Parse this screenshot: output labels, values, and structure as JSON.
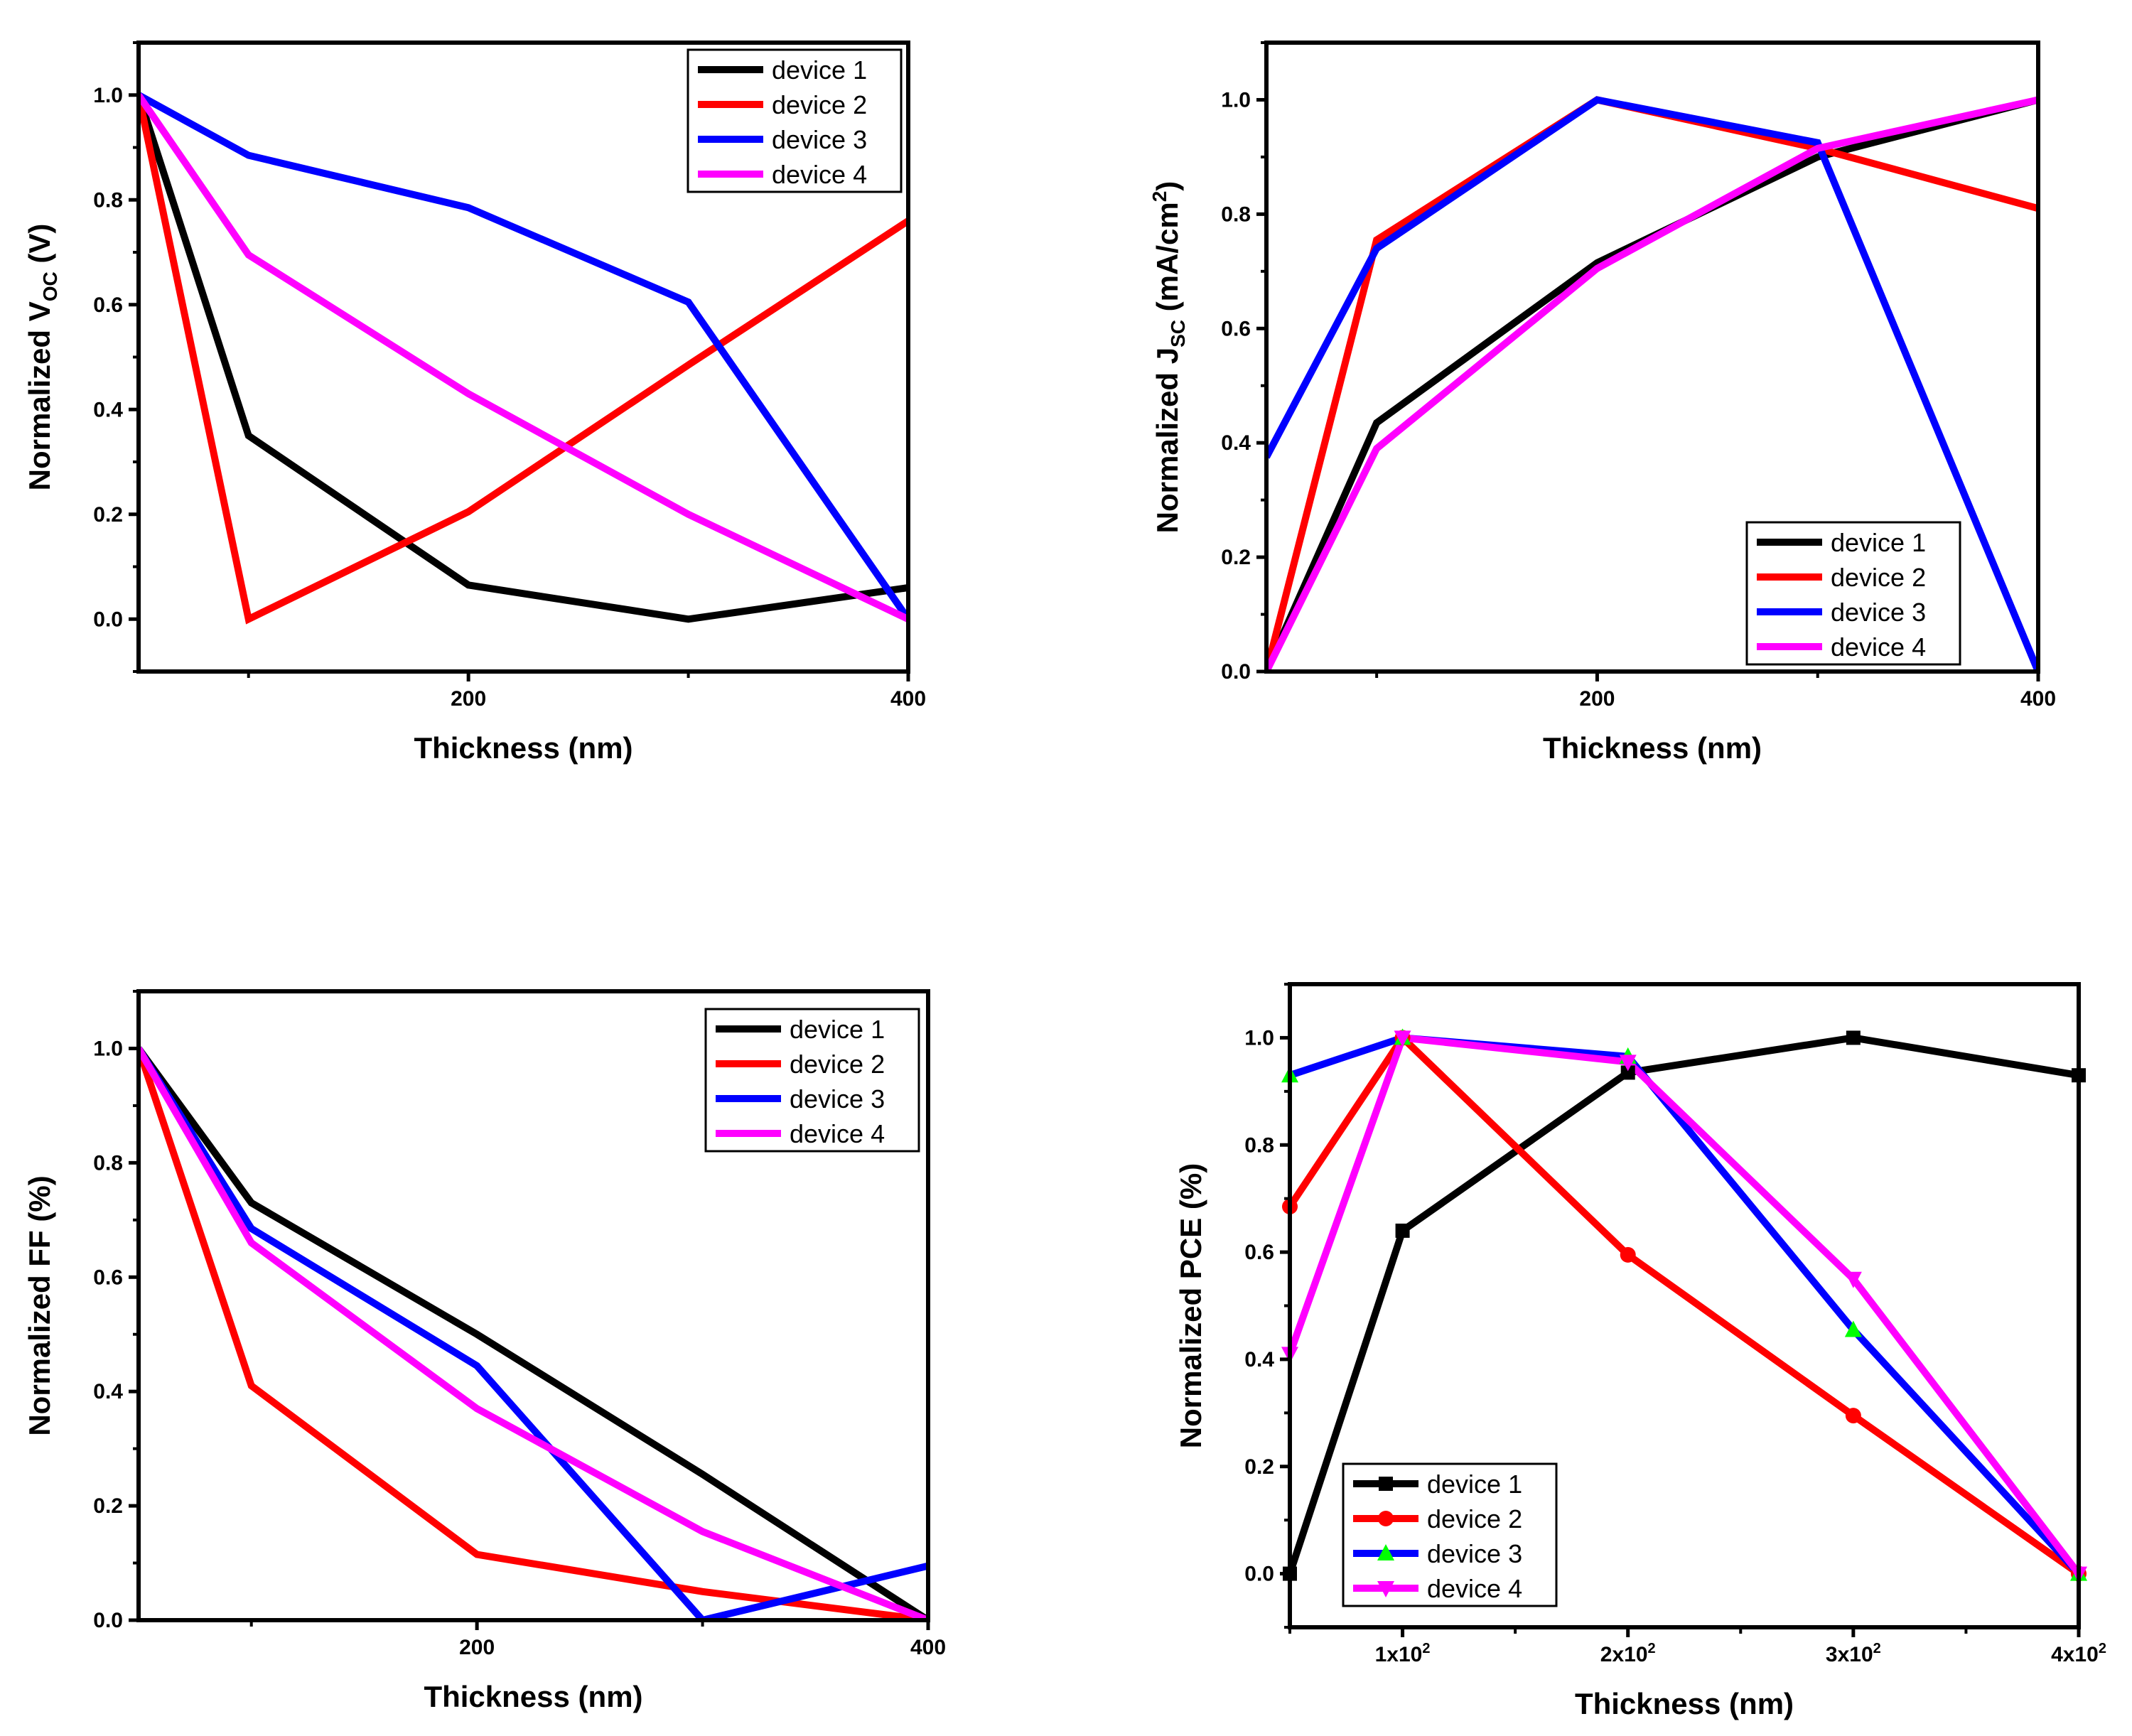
{
  "colors": {
    "device1": "#000000",
    "device2": "#ff0000",
    "device3": "#0000ff",
    "device4": "#ff00ff",
    "device3_marker": "#00ff00",
    "frame": "#000000"
  },
  "chart_data": [
    {
      "id": "voc",
      "type": "line",
      "title": "",
      "xlabel": "Thickness (nm)",
      "ylabel_main": "Normalized V",
      "ylabel_sub": "OC",
      "ylabel_tail": " (V)",
      "xlim": [
        50,
        400
      ],
      "ylim": [
        -0.1,
        1.1
      ],
      "x_ticks": [
        {
          "v": 200,
          "label": "200"
        },
        {
          "v": 400,
          "label": "400"
        }
      ],
      "x_minor": [
        100,
        300
      ],
      "y_ticks": [
        {
          "v": 0.0,
          "label": "0.0"
        },
        {
          "v": 0.2,
          "label": "0.2"
        },
        {
          "v": 0.4,
          "label": "0.4"
        },
        {
          "v": 0.6,
          "label": "0.6"
        },
        {
          "v": 0.8,
          "label": "0.8"
        },
        {
          "v": 1.0,
          "label": "1.0"
        }
      ],
      "legend_position": "top-right",
      "x": [
        50,
        100,
        200,
        300,
        400
      ],
      "series": [
        {
          "name": "device 1",
          "values": [
            1.0,
            0.35,
            0.065,
            0.0,
            0.06
          ]
        },
        {
          "name": "device 2",
          "values": [
            1.0,
            0.0,
            0.205,
            0.485,
            0.76
          ]
        },
        {
          "name": "device 3",
          "values": [
            1.0,
            0.885,
            0.785,
            0.605,
            0.0
          ]
        },
        {
          "name": "device 4",
          "values": [
            1.0,
            0.695,
            0.43,
            0.2,
            0.0
          ]
        }
      ]
    },
    {
      "id": "jsc",
      "type": "line",
      "title": "",
      "xlabel": "Thickness (nm)",
      "ylabel_main": "Normalized J",
      "ylabel_sub": "SC",
      "ylabel_tail": " (mA/cm",
      "ylabel_sup": "2",
      "ylabel_end": ")",
      "xlim": [
        50,
        400
      ],
      "ylim": [
        0.0,
        1.1
      ],
      "x_ticks": [
        {
          "v": 200,
          "label": "200"
        },
        {
          "v": 400,
          "label": "400"
        }
      ],
      "x_minor": [
        100,
        300
      ],
      "y_ticks": [
        {
          "v": 0.0,
          "label": "0.0"
        },
        {
          "v": 0.2,
          "label": "0.2"
        },
        {
          "v": 0.4,
          "label": "0.4"
        },
        {
          "v": 0.6,
          "label": "0.6"
        },
        {
          "v": 0.8,
          "label": "0.8"
        },
        {
          "v": 1.0,
          "label": "1.0"
        }
      ],
      "legend_position": "bottom-right",
      "x": [
        50,
        100,
        200,
        300,
        400
      ],
      "series": [
        {
          "name": "device 1",
          "values": [
            0.0,
            0.435,
            0.715,
            0.9,
            1.0
          ]
        },
        {
          "name": "device 2",
          "values": [
            0.0,
            0.755,
            1.0,
            0.915,
            0.81
          ]
        },
        {
          "name": "device 3",
          "values": [
            0.375,
            0.74,
            1.0,
            0.925,
            0.0
          ]
        },
        {
          "name": "device 4",
          "values": [
            0.0,
            0.39,
            0.705,
            0.915,
            1.0
          ]
        }
      ]
    },
    {
      "id": "ff",
      "type": "line",
      "title": "",
      "xlabel": "Thickness (nm)",
      "ylabel_main": "Normalized FF (%)",
      "xlim": [
        50,
        400
      ],
      "ylim": [
        0.0,
        1.1
      ],
      "x_ticks": [
        {
          "v": 200,
          "label": "200"
        },
        {
          "v": 400,
          "label": "400"
        }
      ],
      "x_minor": [
        100,
        300
      ],
      "y_ticks": [
        {
          "v": 0.0,
          "label": "0.0"
        },
        {
          "v": 0.2,
          "label": "0.2"
        },
        {
          "v": 0.4,
          "label": "0.4"
        },
        {
          "v": 0.6,
          "label": "0.6"
        },
        {
          "v": 0.8,
          "label": "0.8"
        },
        {
          "v": 1.0,
          "label": "1.0"
        }
      ],
      "legend_position": "top-right",
      "x": [
        50,
        100,
        200,
        300,
        400
      ],
      "series": [
        {
          "name": "device 1",
          "values": [
            1.0,
            0.73,
            0.5,
            0.255,
            0.0
          ]
        },
        {
          "name": "device 2",
          "values": [
            1.0,
            0.41,
            0.115,
            0.05,
            0.0
          ]
        },
        {
          "name": "device 3",
          "values": [
            1.0,
            0.685,
            0.445,
            0.0,
            0.095
          ]
        },
        {
          "name": "device 4",
          "values": [
            1.0,
            0.66,
            0.37,
            0.155,
            0.0
          ]
        }
      ]
    },
    {
      "id": "pce",
      "type": "line",
      "title": "",
      "xlabel": "Thickness (nm)",
      "ylabel_main": "Normalized PCE (%)",
      "xlim": [
        50,
        400
      ],
      "ylim": [
        -0.1,
        1.1
      ],
      "x_ticks": [
        {
          "v": 100,
          "label": "1x10",
          "sup": "2"
        },
        {
          "v": 200,
          "label": "2x10",
          "sup": "2"
        },
        {
          "v": 300,
          "label": "3x10",
          "sup": "2"
        },
        {
          "v": 400,
          "label": "4x10",
          "sup": "2"
        }
      ],
      "x_minor": [
        50,
        150,
        250,
        350
      ],
      "y_ticks": [
        {
          "v": 0.0,
          "label": "0.0"
        },
        {
          "v": 0.2,
          "label": "0.2"
        },
        {
          "v": 0.4,
          "label": "0.4"
        },
        {
          "v": 0.6,
          "label": "0.6"
        },
        {
          "v": 0.8,
          "label": "0.8"
        },
        {
          "v": 1.0,
          "label": "1.0"
        }
      ],
      "legend_position": "bottom-left",
      "markers": true,
      "x": [
        50,
        100,
        200,
        300,
        400
      ],
      "series": [
        {
          "name": "device 1",
          "marker": "square",
          "values": [
            0.0,
            0.64,
            0.935,
            1.0,
            0.93
          ]
        },
        {
          "name": "device 2",
          "marker": "circle",
          "values": [
            0.685,
            1.0,
            0.595,
            0.295,
            0.0
          ]
        },
        {
          "name": "device 3",
          "marker": "triangle-up",
          "values": [
            0.93,
            1.0,
            0.965,
            0.455,
            0.0
          ]
        },
        {
          "name": "device 4",
          "marker": "triangle-down",
          "values": [
            0.41,
            1.0,
            0.955,
            0.55,
            0.0
          ]
        }
      ]
    }
  ]
}
